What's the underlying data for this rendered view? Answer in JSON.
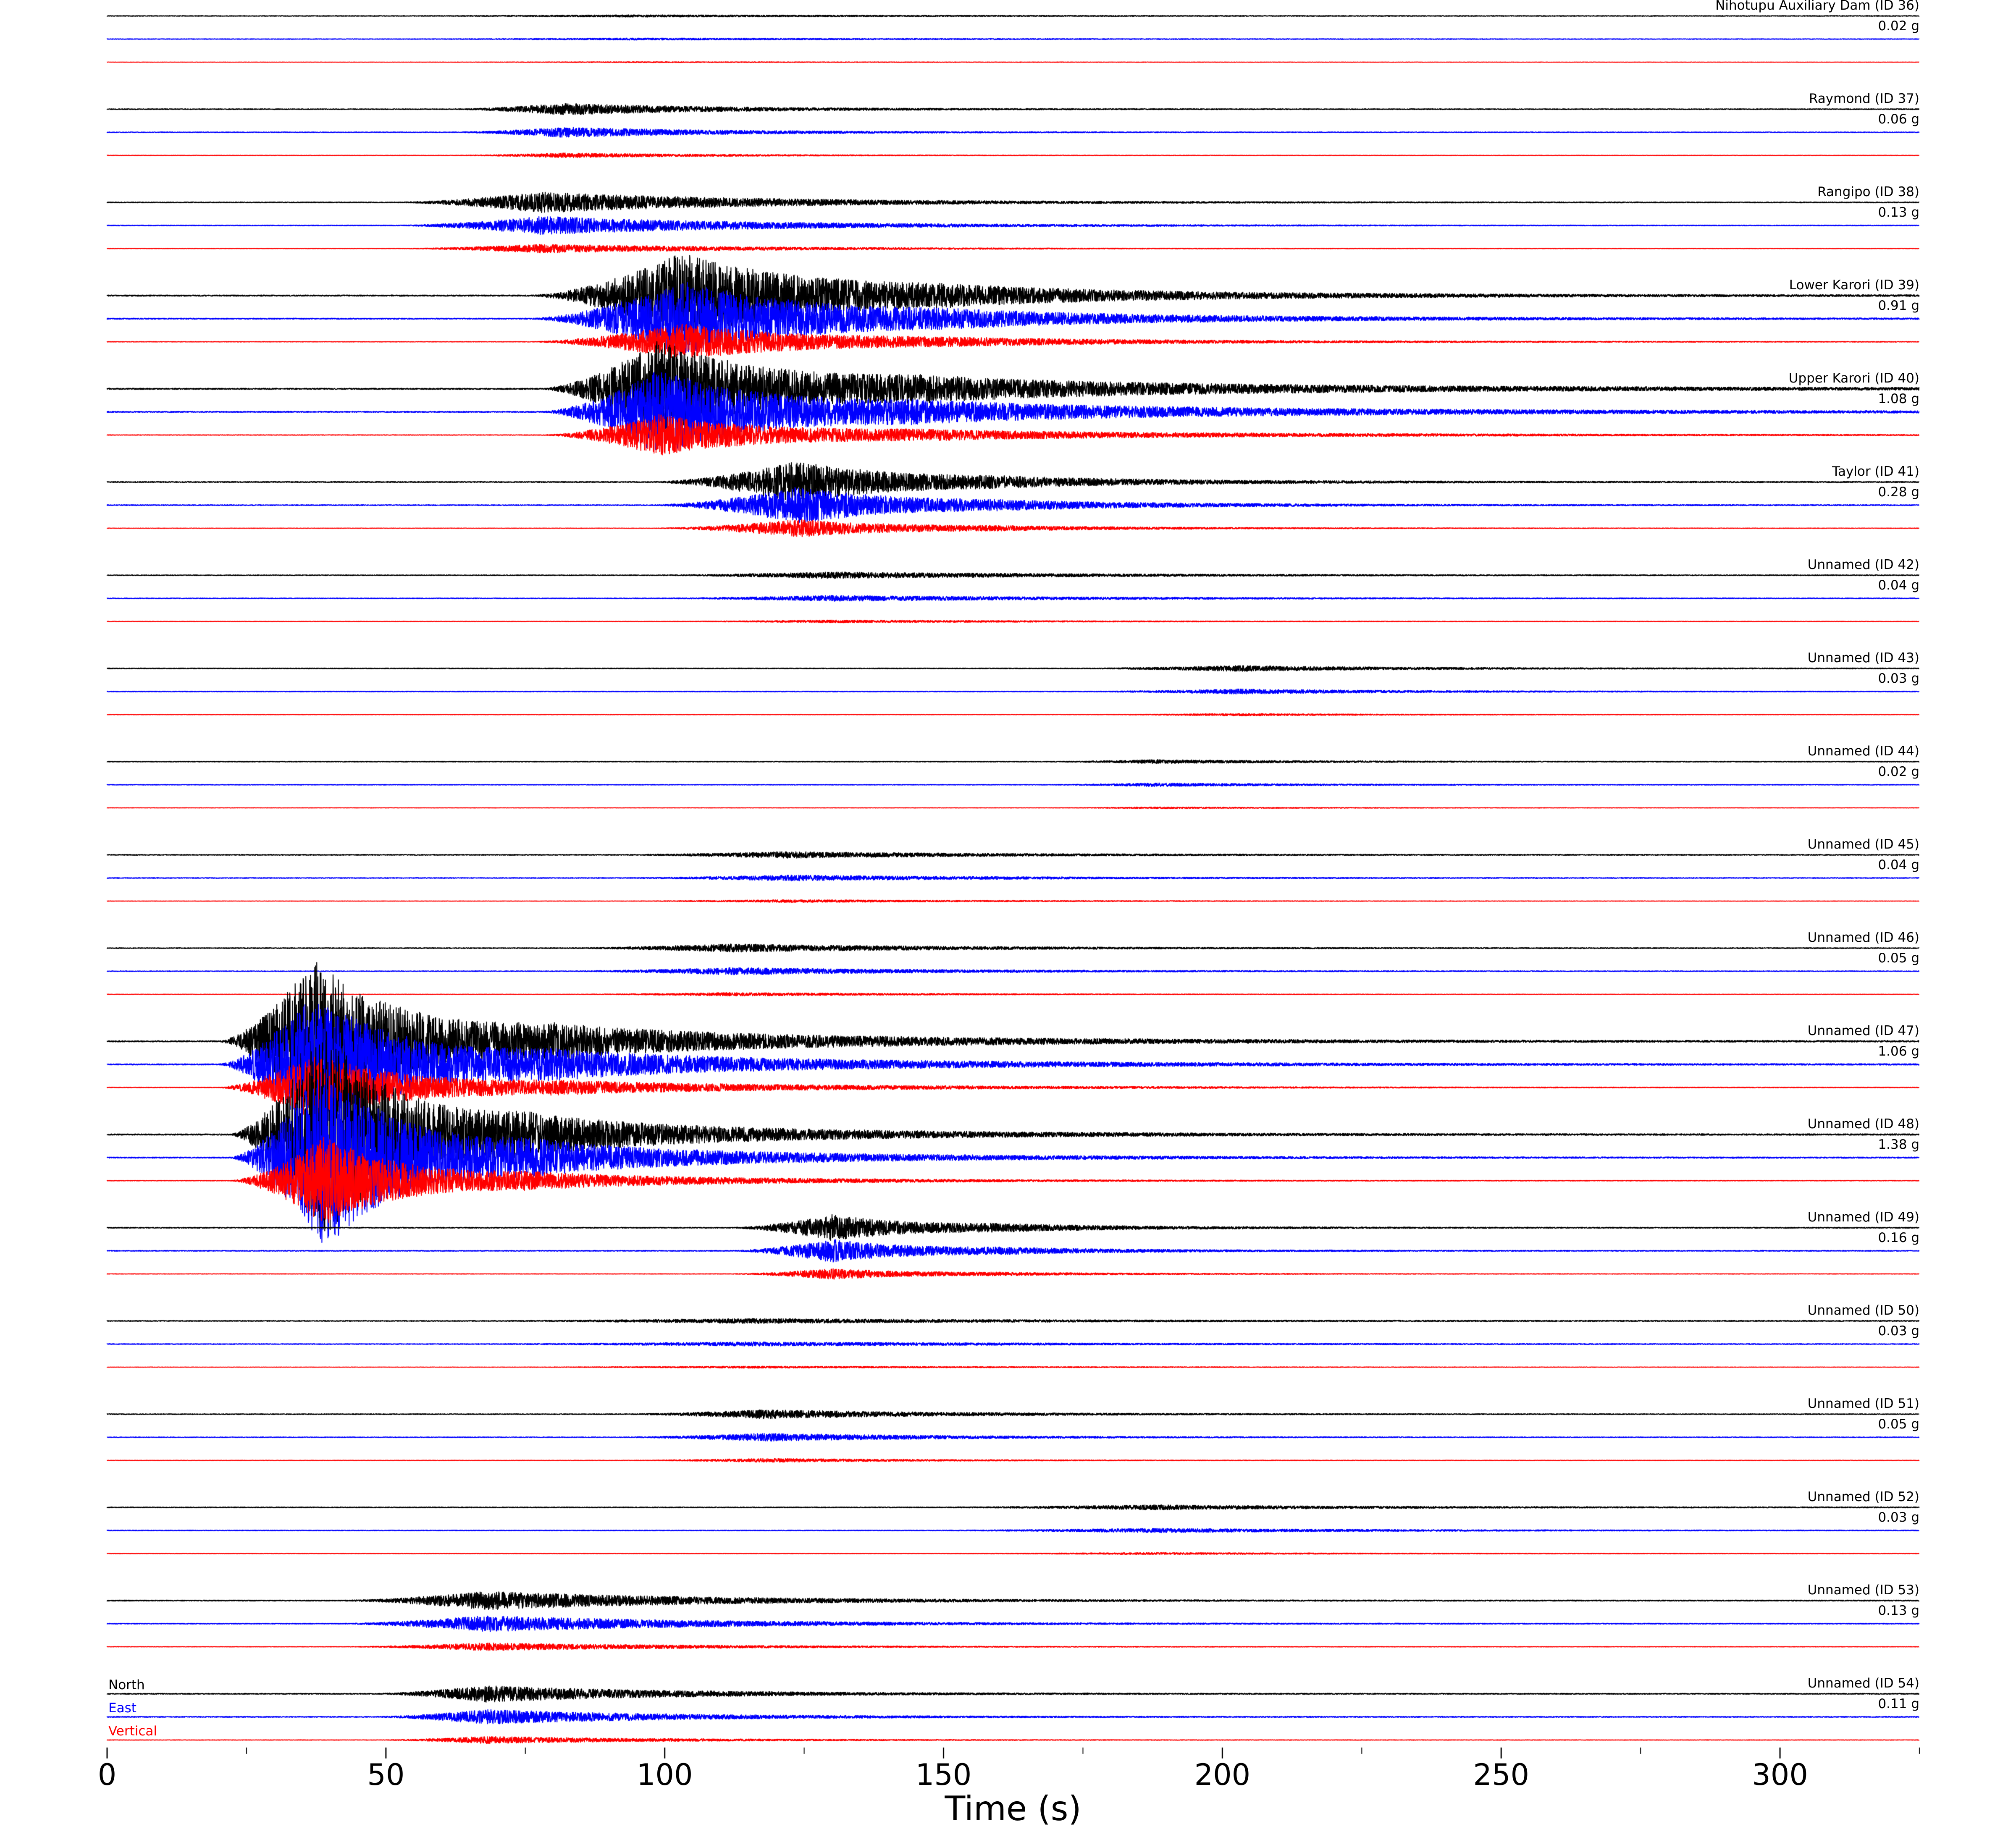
{
  "chart_data": {
    "type": "line",
    "title": "",
    "xlabel": "Time (s)",
    "x_range": [
      0,
      325
    ],
    "xticks": [
      0,
      50,
      100,
      150,
      200,
      250,
      300
    ],
    "minor_tick_interval": 25,
    "grid": false,
    "legend_position": "lower-left",
    "components": [
      {
        "key": "n",
        "label": "North",
        "color": "#000000",
        "scale": 1.0
      },
      {
        "key": "e",
        "label": "East",
        "color": "#0000ff",
        "scale": 0.88
      },
      {
        "key": "v",
        "label": "Vertical",
        "color": "#ff0000",
        "scale": 0.42
      }
    ],
    "stations": [
      {
        "name": "Nihotupu Auxiliary Dam (ID 36)",
        "pga": "0.02 g",
        "noise": 0.8,
        "bursts": [
          {
            "t0": 55,
            "tp": 95,
            "tau": 50,
            "amp": 2
          }
        ]
      },
      {
        "name": "Raymond (ID 37)",
        "pga": "0.06 g",
        "noise": 1.0,
        "bursts": [
          {
            "t0": 62,
            "tp": 82,
            "tau": 28,
            "amp": 13
          }
        ]
      },
      {
        "name": "Rangipo (ID 38)",
        "pga": "0.13 g",
        "noise": 1.0,
        "bursts": [
          {
            "t0": 52,
            "tp": 78,
            "tau": 38,
            "amp": 24
          }
        ]
      },
      {
        "name": "Lower Karori (ID 39)",
        "pga": "0.91 g",
        "noise": 1.5,
        "bursts": [
          {
            "t0": 76,
            "tp": 103,
            "tau": 24,
            "amp": 100
          },
          {
            "t0": 95,
            "tp": 150,
            "tau": 55,
            "amp": 14
          }
        ]
      },
      {
        "name": "Upper Karori (ID 40)",
        "pga": "1.08 g",
        "noise": 1.5,
        "bursts": [
          {
            "t0": 78,
            "tp": 99,
            "tau": 20,
            "amp": 115
          },
          {
            "t0": 95,
            "tp": 145,
            "tau": 70,
            "amp": 22
          }
        ]
      },
      {
        "name": "Taylor (ID 41)",
        "pga": "0.28 g",
        "noise": 1.2,
        "bursts": [
          {
            "t0": 98,
            "tp": 124,
            "tau": 18,
            "amp": 48
          },
          {
            "t0": 110,
            "tp": 160,
            "tau": 40,
            "amp": 8
          }
        ]
      },
      {
        "name": "Unnamed (ID 42)",
        "pga": "0.04 g",
        "noise": 1.0,
        "bursts": [
          {
            "t0": 98,
            "tp": 130,
            "tau": 45,
            "amp": 7
          }
        ]
      },
      {
        "name": "Unnamed (ID 43)",
        "pga": "0.03 g",
        "noise": 1.0,
        "bursts": [
          {
            "t0": 175,
            "tp": 203,
            "tau": 28,
            "amp": 6
          }
        ]
      },
      {
        "name": "Unnamed (ID 44)",
        "pga": "0.02 g",
        "noise": 0.9,
        "bursts": [
          {
            "t0": 168,
            "tp": 188,
            "tau": 28,
            "amp": 4
          }
        ]
      },
      {
        "name": "Unnamed (ID 45)",
        "pga": "0.04 g",
        "noise": 1.0,
        "bursts": [
          {
            "t0": 92,
            "tp": 122,
            "tau": 38,
            "amp": 7
          }
        ]
      },
      {
        "name": "Unnamed (ID 46)",
        "pga": "0.05 g",
        "noise": 1.0,
        "bursts": [
          {
            "t0": 82,
            "tp": 112,
            "tau": 38,
            "amp": 9
          }
        ]
      },
      {
        "name": "Unnamed (ID 47)",
        "pga": "1.06 g",
        "noise": 1.5,
        "bursts": [
          {
            "t0": 20,
            "tp": 37,
            "tau": 16,
            "amp": 195
          },
          {
            "t0": 35,
            "tp": 80,
            "tau": 55,
            "amp": 30
          }
        ]
      },
      {
        "name": "Unnamed (ID 48)",
        "pga": "1.38 g",
        "noise": 1.5,
        "bursts": [
          {
            "t0": 22,
            "tp": 39,
            "tau": 14,
            "amp": 250
          },
          {
            "t0": 38,
            "tp": 75,
            "tau": 45,
            "amp": 35
          }
        ]
      },
      {
        "name": "Unnamed (ID 49)",
        "pga": "0.16 g",
        "noise": 1.2,
        "bursts": [
          {
            "t0": 112,
            "tp": 130,
            "tau": 14,
            "amp": 30
          },
          {
            "t0": 125,
            "tp": 160,
            "tau": 30,
            "amp": 6
          }
        ]
      },
      {
        "name": "Unnamed (ID 50)",
        "pga": "0.03 g",
        "noise": 1.0,
        "bursts": [
          {
            "t0": 68,
            "tp": 115,
            "tau": 55,
            "amp": 5
          }
        ]
      },
      {
        "name": "Unnamed (ID 51)",
        "pga": "0.05 g",
        "noise": 1.0,
        "bursts": [
          {
            "t0": 92,
            "tp": 118,
            "tau": 32,
            "amp": 10
          }
        ]
      },
      {
        "name": "Unnamed (ID 52)",
        "pga": "0.03 g",
        "noise": 1.0,
        "bursts": [
          {
            "t0": 148,
            "tp": 188,
            "tau": 38,
            "amp": 5
          }
        ]
      },
      {
        "name": "Unnamed (ID 53)",
        "pga": "0.13 g",
        "noise": 1.2,
        "bursts": [
          {
            "t0": 42,
            "tp": 68,
            "tau": 38,
            "amp": 21
          }
        ]
      },
      {
        "name": "Unnamed (ID 54)",
        "pga": "0.11 g",
        "noise": 1.2,
        "bursts": [
          {
            "t0": 48,
            "tp": 68,
            "tau": 32,
            "amp": 19
          }
        ]
      }
    ]
  }
}
